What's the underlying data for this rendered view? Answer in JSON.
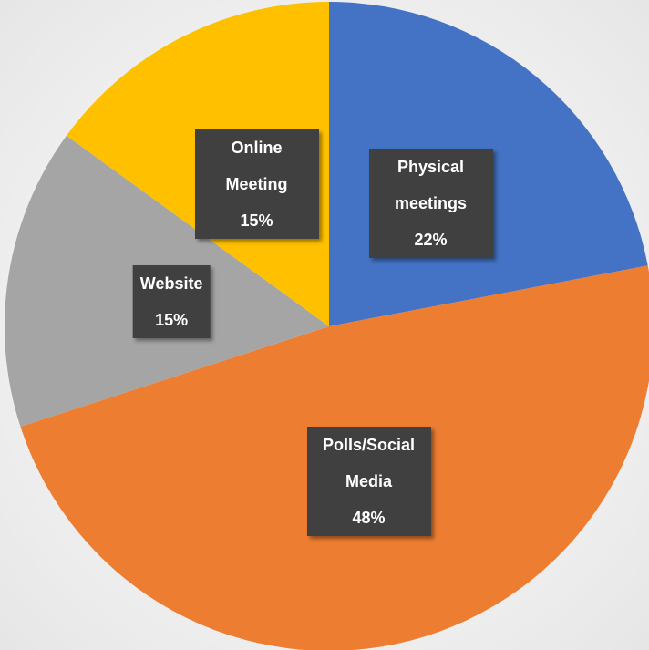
{
  "chart_data": {
    "type": "pie",
    "categories": [
      "Physical meetings",
      "Polls/Social Media",
      "Website",
      "Online Meeting"
    ],
    "values": [
      22,
      48,
      15,
      15
    ],
    "value_labels": [
      "22%",
      "48%",
      "15%",
      "15%"
    ],
    "colors": [
      "#4472c4",
      "#ed7d31",
      "#a5a5a5",
      "#ffc000"
    ],
    "start_angle": 0,
    "direction": "clockwise"
  }
}
